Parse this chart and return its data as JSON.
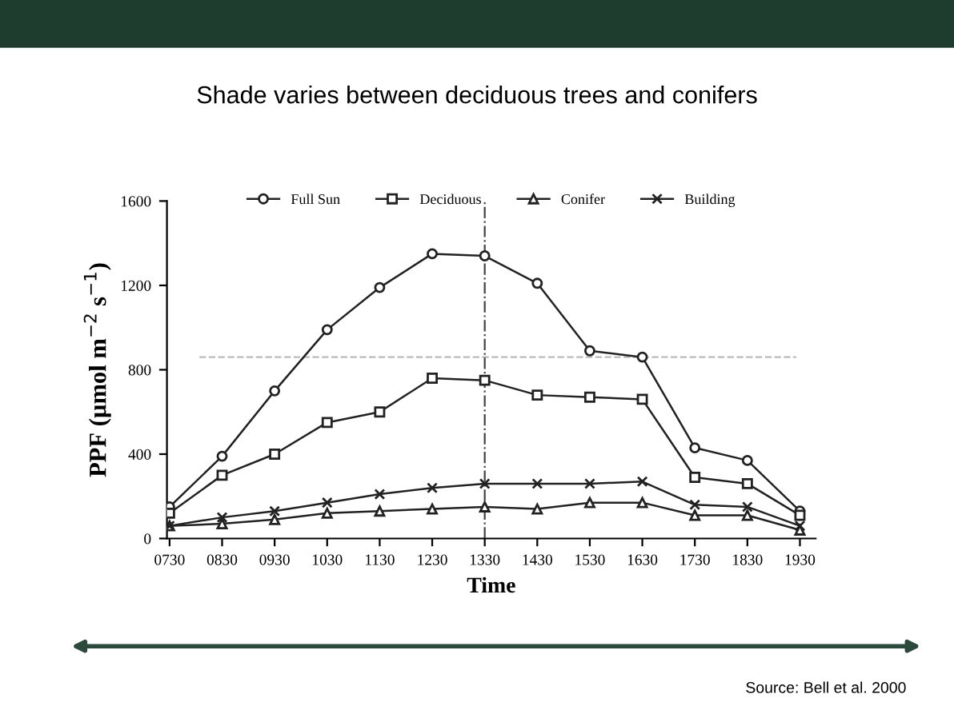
{
  "chart_data": {
    "type": "line",
    "title": "Shade varies between deciduous trees and conifers",
    "xlabel": "Time",
    "ylabel": "PPF (µmol m$^{−2}$ s$^{−1}$)",
    "categories": [
      "0730",
      "0830",
      "0930",
      "1030",
      "1130",
      "1230",
      "1330",
      "1430",
      "1530",
      "1630",
      "1730",
      "1830",
      "1930"
    ],
    "series": [
      {
        "name": "Full Sun",
        "color": "#222222",
        "marker": "circle",
        "values": [
          150,
          390,
          700,
          990,
          1190,
          1350,
          1340,
          1210,
          890,
          860,
          430,
          370,
          130
        ]
      },
      {
        "name": "Deciduous",
        "color": "#222222",
        "marker": "square",
        "values": [
          120,
          300,
          400,
          550,
          600,
          760,
          750,
          680,
          670,
          660,
          290,
          260,
          110
        ]
      },
      {
        "name": "Conifer",
        "color": "#222222",
        "marker": "triangle",
        "values": [
          60,
          70,
          90,
          120,
          130,
          140,
          150,
          140,
          170,
          170,
          110,
          110,
          40
        ]
      },
      {
        "name": "Building",
        "color": "#222222",
        "marker": "cross",
        "values": [
          60,
          100,
          130,
          170,
          210,
          240,
          260,
          260,
          260,
          270,
          160,
          150,
          60
        ]
      }
    ],
    "ylim": [
      0,
      1600
    ],
    "yticks": [
      0,
      400,
      800,
      1200,
      1600
    ],
    "grid": false,
    "legend": "top",
    "ref_lines": [
      {
        "axis": "y",
        "value": 860,
        "color": "#bbbbbb",
        "line_style": "dashed"
      },
      {
        "axis": "x",
        "value": "1330",
        "color": "#444444",
        "line_style": "dashdot"
      }
    ],
    "annotations": [
      "Source: Bell et al. 2000"
    ]
  }
}
